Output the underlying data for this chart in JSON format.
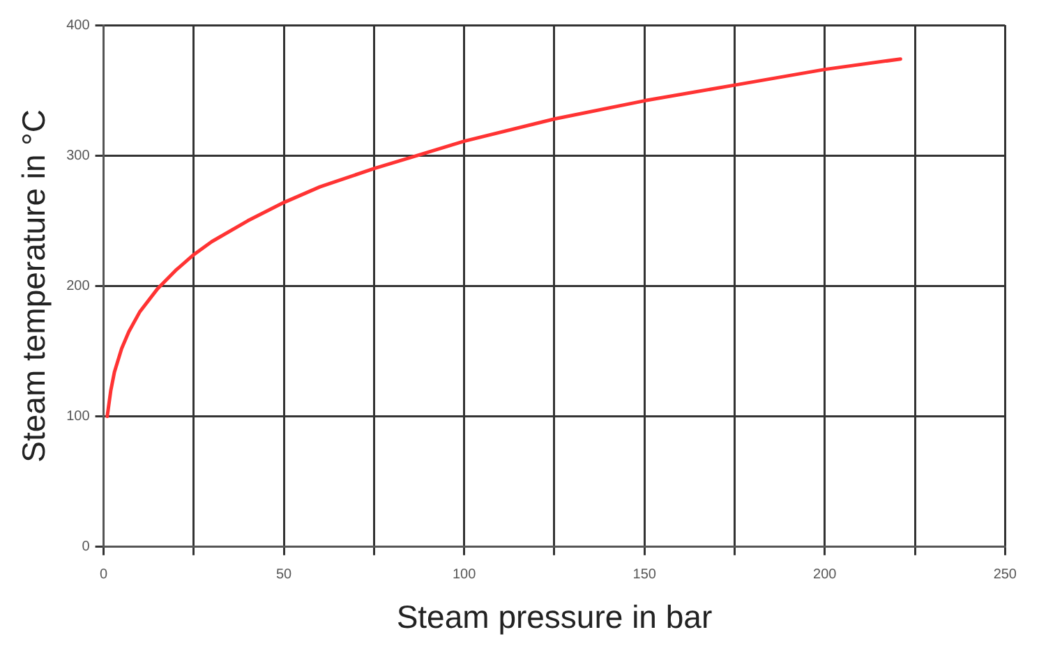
{
  "chart_data": {
    "type": "line",
    "xlabel": "Steam pressure in bar",
    "ylabel": "Steam temperature in °C",
    "x": [
      1,
      2,
      3,
      5,
      7,
      10,
      15,
      20,
      25,
      30,
      40,
      50,
      60,
      75,
      87,
      100,
      125,
      150,
      175,
      200,
      221
    ],
    "series": [
      {
        "color": "#ff3333",
        "values": [
          100,
          120,
          134,
          152,
          165,
          180,
          198,
          212,
          224,
          234,
          250,
          264,
          276,
          290,
          300,
          311,
          328,
          342,
          354,
          366,
          374
        ]
      }
    ],
    "xlim": [
      0,
      250
    ],
    "xticks": [
      0,
      {
        "value": 25,
        "label": null
      },
      50,
      {
        "value": 75,
        "label": null
      },
      100,
      {
        "value": 125,
        "label": null
      },
      150,
      {
        "value": 175,
        "label": null
      },
      200,
      {
        "value": 225,
        "label": null
      },
      250
    ],
    "ylim": [
      0,
      400
    ],
    "yticks": [
      0,
      100,
      200,
      300,
      400
    ],
    "grid": true,
    "legend": false,
    "marker": "none",
    "line_style": "solid"
  }
}
